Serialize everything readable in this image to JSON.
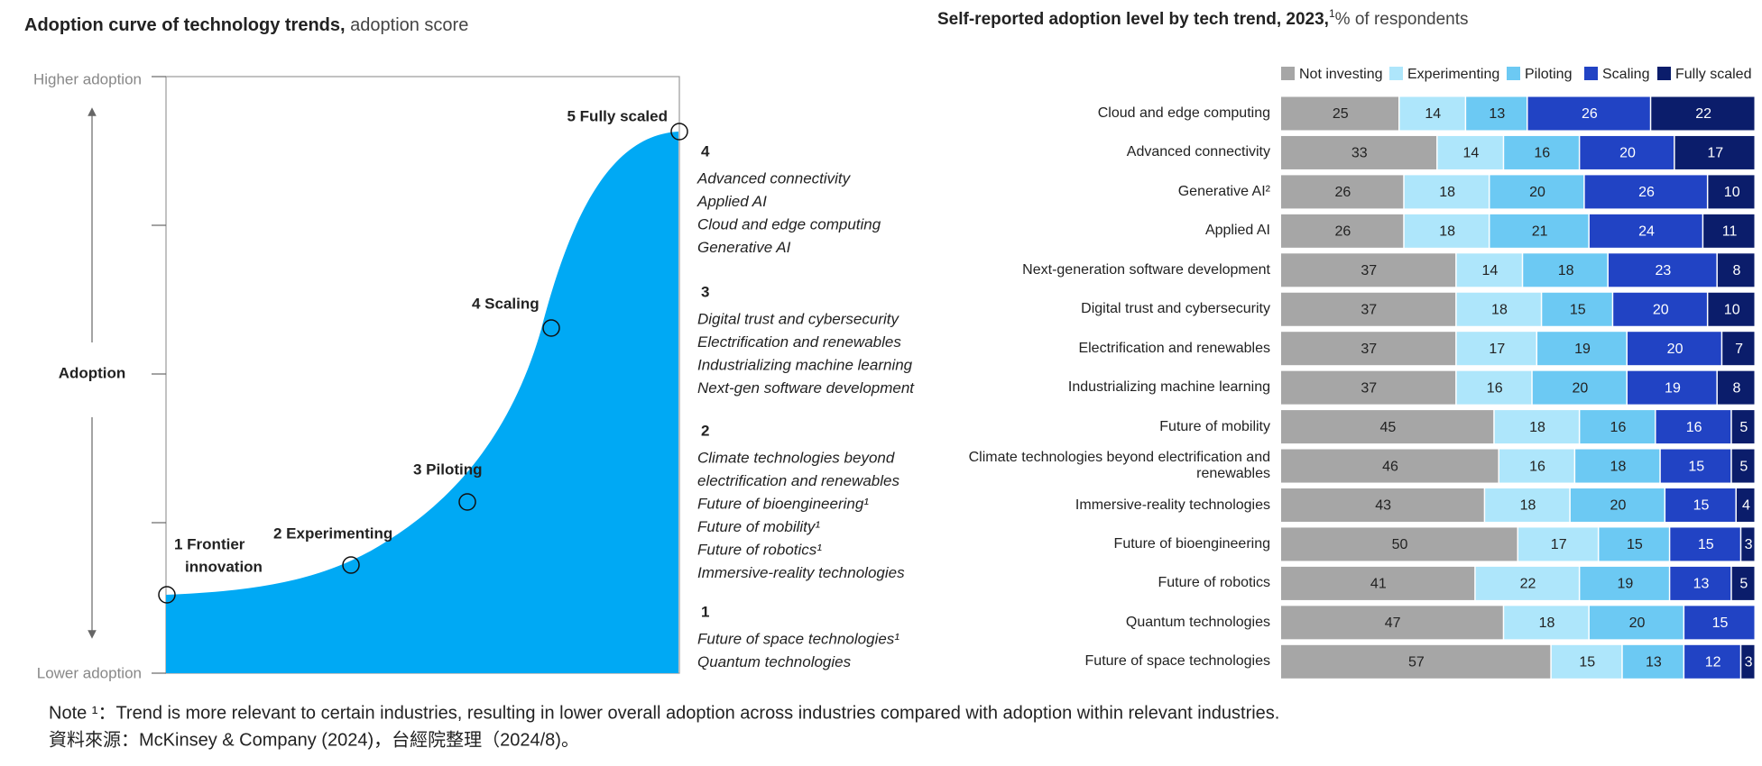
{
  "chart_data": [
    {
      "type": "adoption-curve",
      "title": "Adoption curve of technology trends,",
      "subtitle": "adoption score",
      "y_top_label": "Higher adoption",
      "y_bottom_label": "Lower adoption",
      "y_label": "Adoption",
      "fill": "#00a9f4",
      "stages": [
        "1 Frontier",
        "innovation",
        "2 Experimenting",
        "3 Piloting",
        "4 Scaling",
        "5 Fully scaled"
      ],
      "groups": [
        {
          "label": "4",
          "items": [
            "Advanced connectivity",
            "Applied AI",
            "Cloud and edge computing",
            "Generative AI"
          ]
        },
        {
          "label": "3",
          "items": [
            "Digital trust and cybersecurity",
            "Electrification and renewables",
            "Industrializing machine learning",
            "Next-gen software development"
          ]
        },
        {
          "label": "2",
          "items": [
            "Climate technologies beyond",
            "electrification and renewables",
            "Future of bioengineering¹",
            "Future of mobility¹",
            "Future of robotics¹",
            "Immersive-reality technologies"
          ]
        },
        {
          "label": "1",
          "items": [
            "Future of space technologies¹",
            "Quantum technologies"
          ]
        }
      ]
    },
    {
      "type": "stacked-bar-horizontal",
      "title": "Self-reported adoption level by tech trend, 2023,",
      "title_note": "1",
      "subtitle": "% of respondents",
      "xlim": [
        0,
        100
      ],
      "categories": [
        "Cloud and edge computing",
        "Advanced connectivity",
        "Generative AI²",
        "Applied AI",
        "Next-generation software development",
        "Digital trust and cybersecurity",
        "Electrification and renewables",
        "Industrializing machine learning",
        "Future of mobility",
        "Climate technologies beyond electrification and renewables",
        "Immersive-reality technologies",
        "Future of bioengineering",
        "Future of robotics",
        "Quantum technologies",
        "Future of space technologies"
      ],
      "series": [
        {
          "name": "Not investing",
          "color": "#a6a6a6",
          "text_color": "#222",
          "values": [
            25,
            33,
            26,
            26,
            37,
            37,
            37,
            37,
            45,
            46,
            43,
            50,
            41,
            47,
            57
          ]
        },
        {
          "name": "Experimenting",
          "color": "#aee6fb",
          "text_color": "#222",
          "values": [
            14,
            14,
            18,
            18,
            14,
            18,
            17,
            16,
            18,
            16,
            18,
            17,
            22,
            18,
            15
          ]
        },
        {
          "name": "Piloting",
          "color": "#6cc9f3",
          "text_color": "#222",
          "values": [
            13,
            16,
            20,
            21,
            18,
            15,
            19,
            20,
            16,
            18,
            20,
            15,
            19,
            20,
            13
          ]
        },
        {
          "name": "Scaling",
          "color": "#2143c4",
          "text_color": "#fff",
          "values": [
            26,
            20,
            26,
            24,
            23,
            20,
            20,
            19,
            16,
            15,
            15,
            15,
            13,
            15,
            12
          ]
        },
        {
          "name": "Fully scaled",
          "color": "#0b1d6b",
          "text_color": "#fff",
          "values": [
            22,
            17,
            10,
            11,
            8,
            10,
            7,
            8,
            5,
            5,
            4,
            3,
            5,
            0,
            3
          ]
        }
      ]
    }
  ],
  "note": "Note ¹：Trend is more relevant to certain industries, resulting in lower overall adoption across industries compared with adoption within relevant industries.",
  "source": "資料來源：McKinsey & Company (2024)，台經院整理（2024/8)。"
}
